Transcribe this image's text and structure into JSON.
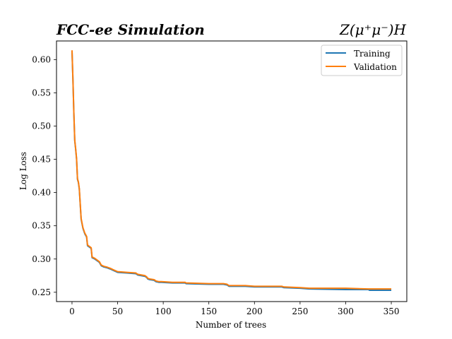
{
  "chart_data": {
    "type": "line",
    "title_left": "FCC-ee Simulation",
    "title_right": "Z(μ⁺μ⁻)H",
    "xlabel": "Number of trees",
    "ylabel": "Log Loss",
    "xlim": [
      -17,
      367
    ],
    "ylim": [
      0.236,
      0.628
    ],
    "xticks": [
      0,
      50,
      100,
      150,
      200,
      250,
      300,
      350
    ],
    "xtick_labels": [
      "0",
      "50",
      "100",
      "150",
      "200",
      "250",
      "300",
      "350"
    ],
    "yticks": [
      0.25,
      0.3,
      0.35,
      0.4,
      0.45,
      0.5,
      0.55,
      0.6
    ],
    "ytick_labels": [
      "0.25",
      "0.30",
      "0.35",
      "0.40",
      "0.45",
      "0.50",
      "0.55",
      "0.60"
    ],
    "grid": false,
    "legend_position": "top-right",
    "series": [
      {
        "name": "Training",
        "color": "#1f77b4",
        "x": [
          0,
          1,
          2,
          3,
          4,
          5,
          6,
          7,
          8,
          10,
          12,
          14,
          16,
          17,
          20,
          21,
          22,
          25,
          28,
          30,
          32,
          35,
          38,
          42,
          45,
          50,
          60,
          70,
          72,
          80,
          82,
          83,
          85,
          90,
          92,
          95,
          98,
          110,
          124,
          125,
          150,
          166,
          170,
          172,
          190,
          200,
          230,
          232,
          250,
          260,
          300,
          325,
          326,
          350
        ],
        "y": [
          0.613,
          0.57,
          0.52,
          0.478,
          0.465,
          0.45,
          0.42,
          0.415,
          0.405,
          0.36,
          0.346,
          0.338,
          0.333,
          0.32,
          0.317,
          0.316,
          0.302,
          0.3,
          0.297,
          0.295,
          0.29,
          0.288,
          0.287,
          0.285,
          0.283,
          0.28,
          0.279,
          0.278,
          0.276,
          0.274,
          0.272,
          0.27,
          0.269,
          0.268,
          0.266,
          0.265,
          0.265,
          0.264,
          0.264,
          0.263,
          0.262,
          0.262,
          0.261,
          0.259,
          0.259,
          0.258,
          0.258,
          0.257,
          0.256,
          0.255,
          0.254,
          0.254,
          0.253,
          0.253
        ]
      },
      {
        "name": "Validation",
        "color": "#ff7f0e",
        "x": [
          0,
          1,
          2,
          3,
          4,
          5,
          6,
          7,
          8,
          10,
          12,
          14,
          16,
          17,
          20,
          21,
          22,
          25,
          28,
          30,
          32,
          35,
          38,
          42,
          45,
          50,
          60,
          70,
          72,
          80,
          82,
          83,
          85,
          90,
          92,
          95,
          98,
          110,
          124,
          125,
          150,
          166,
          170,
          172,
          190,
          200,
          230,
          232,
          250,
          260,
          300,
          325,
          326,
          350
        ],
        "y": [
          0.614,
          0.571,
          0.521,
          0.479,
          0.466,
          0.451,
          0.421,
          0.416,
          0.406,
          0.361,
          0.347,
          0.339,
          0.334,
          0.321,
          0.318,
          0.317,
          0.303,
          0.301,
          0.298,
          0.296,
          0.291,
          0.289,
          0.288,
          0.286,
          0.284,
          0.281,
          0.28,
          0.279,
          0.277,
          0.275,
          0.273,
          0.271,
          0.27,
          0.269,
          0.267,
          0.266,
          0.266,
          0.265,
          0.265,
          0.264,
          0.263,
          0.263,
          0.262,
          0.26,
          0.26,
          0.259,
          0.259,
          0.258,
          0.257,
          0.256,
          0.256,
          0.255,
          0.255,
          0.255
        ]
      }
    ]
  }
}
